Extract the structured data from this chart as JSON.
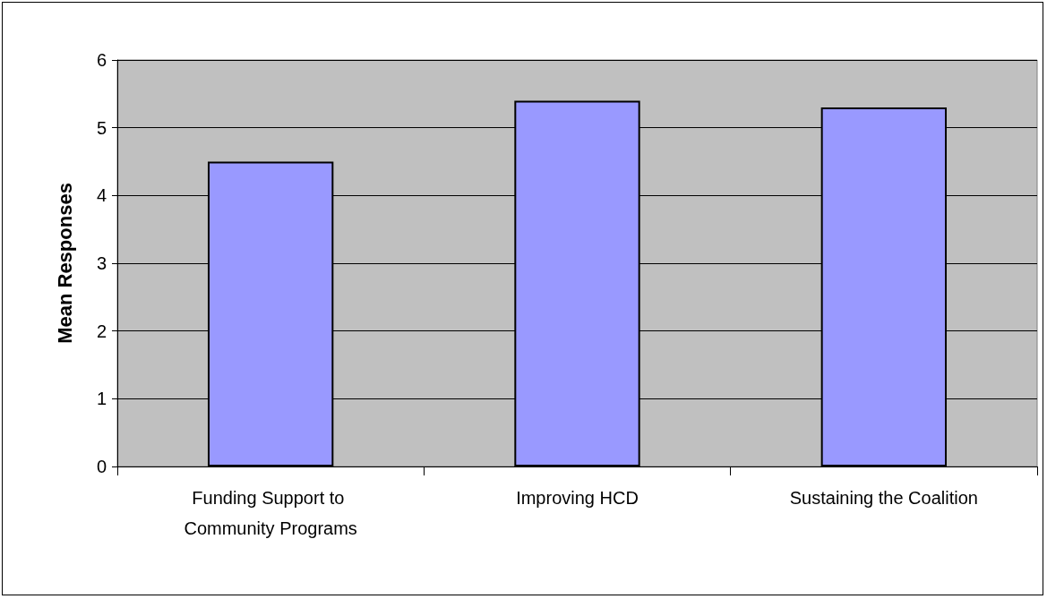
{
  "chart_data": {
    "type": "bar",
    "ylabel": "Mean Responses",
    "categories": [
      "Funding Support to Community Programs",
      "Improving HCD",
      "Sustaining the Coalition"
    ],
    "values": [
      4.5,
      5.4,
      5.3
    ],
    "color": "#9999ff",
    "ylim": [
      0,
      6
    ],
    "yticks": [
      0,
      1,
      2,
      3,
      4,
      5,
      6
    ],
    "grid": "y"
  }
}
